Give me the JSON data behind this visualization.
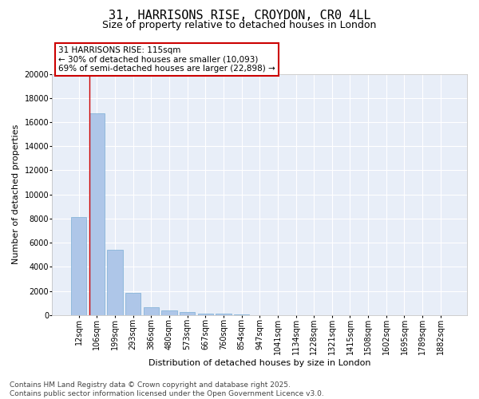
{
  "title_line1": "31, HARRISONS RISE, CROYDON, CR0 4LL",
  "title_line2": "Size of property relative to detached houses in London",
  "xlabel": "Distribution of detached houses by size in London",
  "ylabel": "Number of detached properties",
  "categories": [
    "12sqm",
    "106sqm",
    "199sqm",
    "293sqm",
    "386sqm",
    "480sqm",
    "573sqm",
    "667sqm",
    "760sqm",
    "854sqm",
    "947sqm",
    "1041sqm",
    "1134sqm",
    "1228sqm",
    "1321sqm",
    "1415sqm",
    "1508sqm",
    "1602sqm",
    "1695sqm",
    "1789sqm",
    "1882sqm"
  ],
  "values": [
    8100,
    16700,
    5400,
    1850,
    650,
    350,
    220,
    150,
    100,
    30,
    10,
    5,
    2,
    1,
    1,
    0,
    0,
    0,
    0,
    0,
    0
  ],
  "bar_color": "#aec6e8",
  "bar_edge_color": "#7aadd4",
  "vline_color": "#cc0000",
  "annotation_text": "31 HARRISONS RISE: 115sqm\n← 30% of detached houses are smaller (10,093)\n69% of semi-detached houses are larger (22,898) →",
  "annotation_box_color": "#ffffff",
  "annotation_box_edgecolor": "#cc0000",
  "ylim": [
    0,
    20000
  ],
  "yticks": [
    0,
    2000,
    4000,
    6000,
    8000,
    10000,
    12000,
    14000,
    16000,
    18000,
    20000
  ],
  "background_color": "#ffffff",
  "plot_bg_color": "#e8eef8",
  "grid_color": "#ffffff",
  "footer_line1": "Contains HM Land Registry data © Crown copyright and database right 2025.",
  "footer_line2": "Contains public sector information licensed under the Open Government Licence v3.0.",
  "title_fontsize": 11,
  "subtitle_fontsize": 9,
  "axis_label_fontsize": 8,
  "tick_fontsize": 7,
  "annotation_fontsize": 7.5,
  "footer_fontsize": 6.5
}
